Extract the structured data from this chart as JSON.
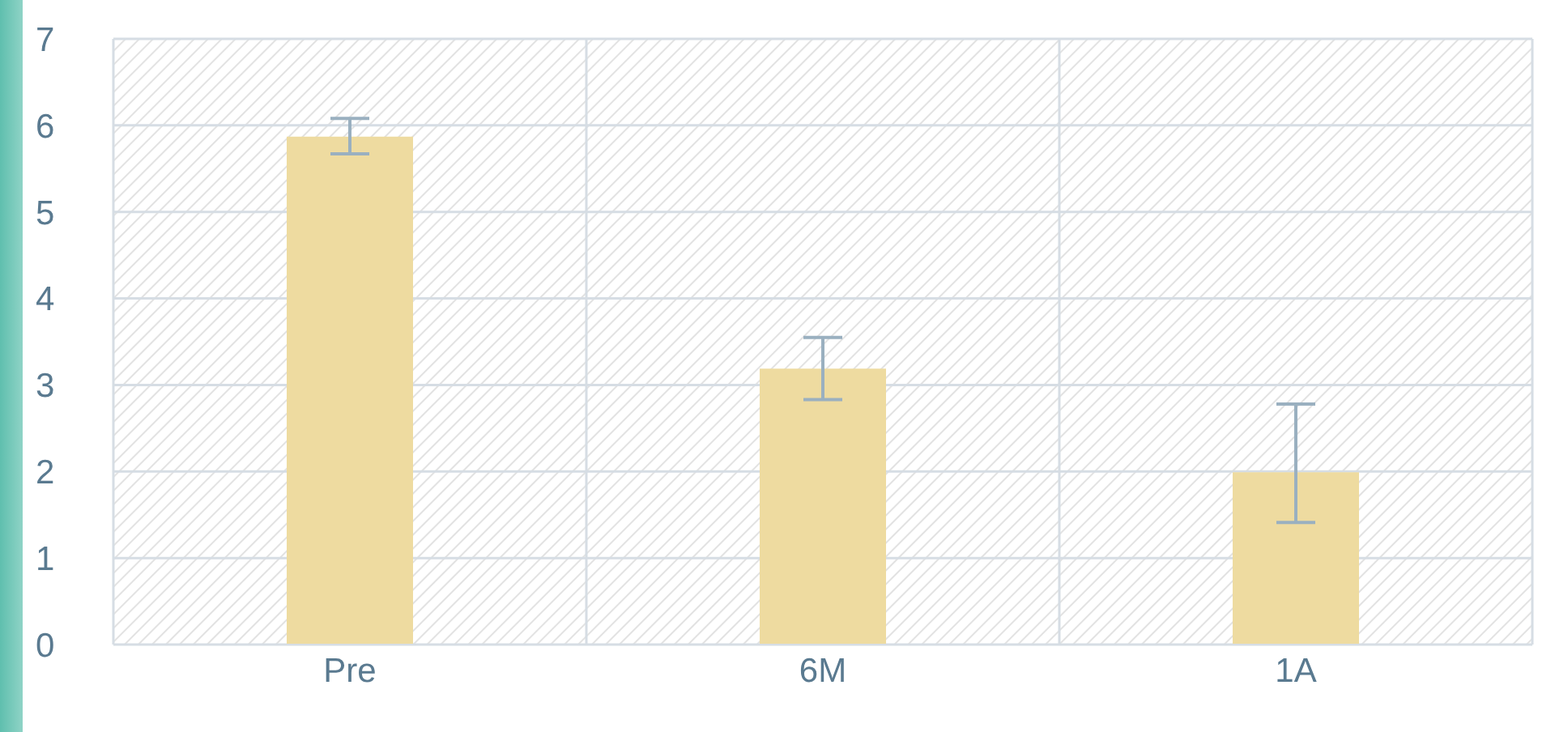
{
  "chart_data": {
    "type": "bar",
    "categories": [
      "Pre",
      "6M",
      "1A"
    ],
    "values": [
      5.87,
      3.19,
      1.99
    ],
    "errors": [
      [
        5.67,
        6.08
      ],
      [
        2.83,
        3.55
      ],
      [
        1.41,
        2.78
      ]
    ],
    "color": "#eedba0",
    "ylim": [
      0,
      7
    ],
    "yticks": [
      0,
      1,
      2,
      3,
      4,
      5,
      6,
      7
    ],
    "grid": true
  }
}
